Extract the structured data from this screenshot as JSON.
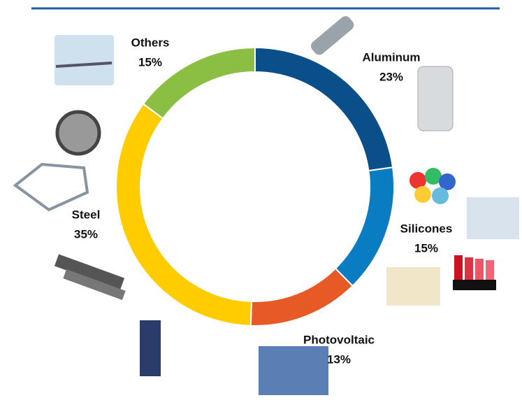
{
  "chart_data": {
    "type": "donut",
    "categories": [
      "Aluminum",
      "Silicones",
      "Photovoltaic",
      "Steel",
      "Others"
    ],
    "values": [
      23,
      15,
      13,
      35,
      15
    ],
    "value_labels": [
      "23%",
      "15%",
      "13%",
      "35%",
      "15%"
    ],
    "colors": [
      "#0b4f8a",
      "#0a7dc2",
      "#e85a25",
      "#ffcc00",
      "#8bbf43"
    ]
  }
}
